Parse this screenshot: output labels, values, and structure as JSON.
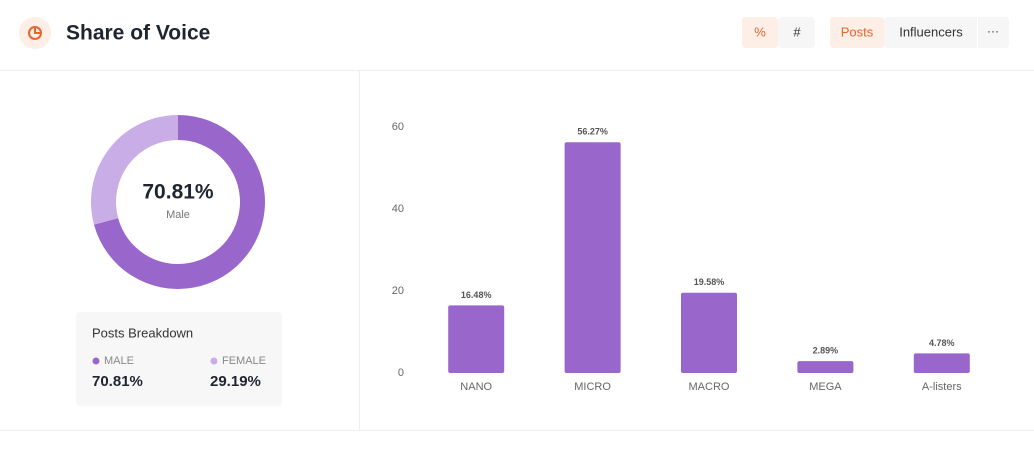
{
  "header": {
    "title": "Share of Voice",
    "toggle_metric": [
      "%",
      "#"
    ],
    "toggle_view": [
      "Posts",
      "Influencers",
      "···"
    ]
  },
  "chart_data": [
    {
      "type": "donut",
      "categories": [
        "MALE",
        "FEMALE"
      ],
      "values": [
        70.81,
        29.19
      ],
      "value_labels": [
        "70.81%",
        "29.19%"
      ],
      "colors": [
        "#9966cc",
        "#c9ade6"
      ],
      "center_label": "Male",
      "legend_title": "Posts Breakdown"
    },
    {
      "type": "bar",
      "categories": [
        "NANO",
        "MICRO",
        "MACRO",
        "MEGA",
        "A-listers"
      ],
      "values": [
        16.48,
        56.27,
        19.58,
        2.89,
        4.78
      ],
      "value_labels": [
        "16.48%",
        "56.27%",
        "19.58%",
        "2.89%",
        "4.78%"
      ],
      "color": "#9966cc",
      "ylim": [
        0,
        60
      ],
      "yticks": [
        0,
        20,
        40,
        60
      ],
      "grid": false
    }
  ]
}
